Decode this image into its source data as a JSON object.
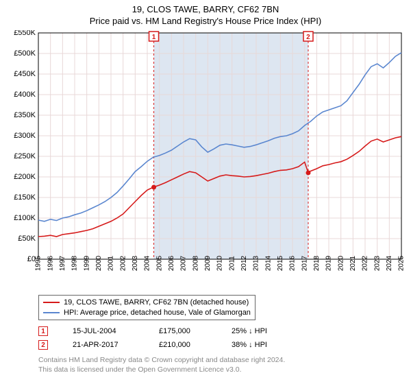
{
  "title_line1": "19, CLOS TAWE, BARRY, CF62 7BN",
  "title_line2": "Price paid vs. HM Land Registry's House Price Index (HPI)",
  "chart": {
    "type": "line",
    "background_color": "#ffffff",
    "plot_border_color": "#000000",
    "grid_color": "#e8d8d8",
    "shade_color": "#dde6f1",
    "shade_x_start": 2004.54,
    "shade_x_end": 2017.3,
    "xlim": [
      1995,
      2025
    ],
    "ylim": [
      0,
      550000
    ],
    "ytick_step": 50000,
    "ytick_labels": [
      "£0",
      "£50K",
      "£100K",
      "£150K",
      "£200K",
      "£250K",
      "£300K",
      "£350K",
      "£400K",
      "£450K",
      "£500K",
      "£550K"
    ],
    "xticks": [
      1995,
      1996,
      1997,
      1998,
      1999,
      2000,
      2001,
      2002,
      2003,
      2004,
      2005,
      2006,
      2007,
      2008,
      2009,
      2010,
      2011,
      2012,
      2013,
      2014,
      2015,
      2016,
      2017,
      2018,
      2019,
      2020,
      2021,
      2022,
      2023,
      2024,
      2025
    ],
    "label_fontsize": 11,
    "line_width": 1.6,
    "series": [
      {
        "name": "property",
        "label": "19, CLOS TAWE, BARRY, CF62 7BN (detached house)",
        "color": "#d61a1a",
        "data": [
          [
            1995.0,
            55000
          ],
          [
            1995.5,
            56000
          ],
          [
            1996.0,
            58000
          ],
          [
            1996.5,
            55000
          ],
          [
            1997.0,
            60000
          ],
          [
            1997.5,
            62000
          ],
          [
            1998.0,
            64000
          ],
          [
            1998.5,
            67000
          ],
          [
            1999.0,
            70000
          ],
          [
            1999.5,
            74000
          ],
          [
            2000.0,
            80000
          ],
          [
            2000.5,
            86000
          ],
          [
            2001.0,
            92000
          ],
          [
            2001.5,
            100000
          ],
          [
            2002.0,
            110000
          ],
          [
            2002.5,
            125000
          ],
          [
            2003.0,
            140000
          ],
          [
            2003.5,
            155000
          ],
          [
            2004.0,
            168000
          ],
          [
            2004.5,
            175000
          ],
          [
            2005.0,
            180000
          ],
          [
            2005.5,
            186000
          ],
          [
            2006.0,
            193000
          ],
          [
            2006.5,
            200000
          ],
          [
            2007.0,
            207000
          ],
          [
            2007.5,
            213000
          ],
          [
            2008.0,
            210000
          ],
          [
            2008.5,
            200000
          ],
          [
            2009.0,
            190000
          ],
          [
            2009.5,
            196000
          ],
          [
            2010.0,
            202000
          ],
          [
            2010.5,
            205000
          ],
          [
            2011.0,
            203000
          ],
          [
            2011.5,
            202000
          ],
          [
            2012.0,
            200000
          ],
          [
            2012.5,
            201000
          ],
          [
            2013.0,
            203000
          ],
          [
            2013.5,
            206000
          ],
          [
            2014.0,
            209000
          ],
          [
            2014.5,
            213000
          ],
          [
            2015.0,
            216000
          ],
          [
            2015.5,
            217000
          ],
          [
            2016.0,
            220000
          ],
          [
            2016.5,
            225000
          ],
          [
            2017.0,
            236000
          ],
          [
            2017.3,
            210000
          ],
          [
            2017.4,
            213000
          ],
          [
            2018.0,
            220000
          ],
          [
            2018.5,
            227000
          ],
          [
            2019.0,
            230000
          ],
          [
            2019.5,
            234000
          ],
          [
            2020.0,
            237000
          ],
          [
            2020.5,
            243000
          ],
          [
            2021.0,
            252000
          ],
          [
            2021.5,
            262000
          ],
          [
            2022.0,
            275000
          ],
          [
            2022.5,
            287000
          ],
          [
            2023.0,
            292000
          ],
          [
            2023.5,
            285000
          ],
          [
            2024.0,
            290000
          ],
          [
            2024.5,
            295000
          ],
          [
            2025.0,
            298000
          ]
        ]
      },
      {
        "name": "hpi",
        "label": "HPI: Average price, detached house, Vale of Glamorgan",
        "color": "#5a86cf",
        "data": [
          [
            1995.0,
            95000
          ],
          [
            1995.5,
            92000
          ],
          [
            1996.0,
            97000
          ],
          [
            1996.5,
            94000
          ],
          [
            1997.0,
            100000
          ],
          [
            1997.5,
            103000
          ],
          [
            1998.0,
            108000
          ],
          [
            1998.5,
            112000
          ],
          [
            1999.0,
            118000
          ],
          [
            1999.5,
            125000
          ],
          [
            2000.0,
            132000
          ],
          [
            2000.5,
            140000
          ],
          [
            2001.0,
            150000
          ],
          [
            2001.5,
            162000
          ],
          [
            2002.0,
            178000
          ],
          [
            2002.5,
            195000
          ],
          [
            2003.0,
            213000
          ],
          [
            2003.5,
            225000
          ],
          [
            2004.0,
            238000
          ],
          [
            2004.5,
            248000
          ],
          [
            2005.0,
            252000
          ],
          [
            2005.5,
            258000
          ],
          [
            2006.0,
            265000
          ],
          [
            2006.5,
            275000
          ],
          [
            2007.0,
            285000
          ],
          [
            2007.5,
            293000
          ],
          [
            2008.0,
            290000
          ],
          [
            2008.5,
            273000
          ],
          [
            2009.0,
            260000
          ],
          [
            2009.5,
            268000
          ],
          [
            2010.0,
            277000
          ],
          [
            2010.5,
            280000
          ],
          [
            2011.0,
            278000
          ],
          [
            2011.5,
            275000
          ],
          [
            2012.0,
            272000
          ],
          [
            2012.5,
            274000
          ],
          [
            2013.0,
            278000
          ],
          [
            2013.5,
            283000
          ],
          [
            2014.0,
            288000
          ],
          [
            2014.5,
            294000
          ],
          [
            2015.0,
            298000
          ],
          [
            2015.5,
            300000
          ],
          [
            2016.0,
            305000
          ],
          [
            2016.5,
            312000
          ],
          [
            2017.0,
            325000
          ],
          [
            2017.5,
            335000
          ],
          [
            2018.0,
            348000
          ],
          [
            2018.5,
            358000
          ],
          [
            2019.0,
            363000
          ],
          [
            2019.5,
            368000
          ],
          [
            2020.0,
            373000
          ],
          [
            2020.5,
            385000
          ],
          [
            2021.0,
            405000
          ],
          [
            2021.5,
            425000
          ],
          [
            2022.0,
            448000
          ],
          [
            2022.5,
            468000
          ],
          [
            2023.0,
            475000
          ],
          [
            2023.5,
            465000
          ],
          [
            2024.0,
            478000
          ],
          [
            2024.5,
            493000
          ],
          [
            2025.0,
            502000
          ]
        ]
      }
    ],
    "markers": [
      {
        "n": "1",
        "x": 2004.54,
        "y": 175000,
        "color": "#d61a1a"
      },
      {
        "n": "2",
        "x": 2017.3,
        "y": 210000,
        "color": "#d61a1a"
      }
    ]
  },
  "sales": [
    {
      "n": "1",
      "marker_color": "#d61a1a",
      "date": "15-JUL-2004",
      "price": "£175,000",
      "delta": "25% ↓ HPI"
    },
    {
      "n": "2",
      "marker_color": "#d61a1a",
      "date": "21-APR-2017",
      "price": "£210,000",
      "delta": "38% ↓ HPI"
    }
  ],
  "footnote_line1": "Contains HM Land Registry data © Crown copyright and database right 2024.",
  "footnote_line2": "This data is licensed under the Open Government Licence v3.0."
}
